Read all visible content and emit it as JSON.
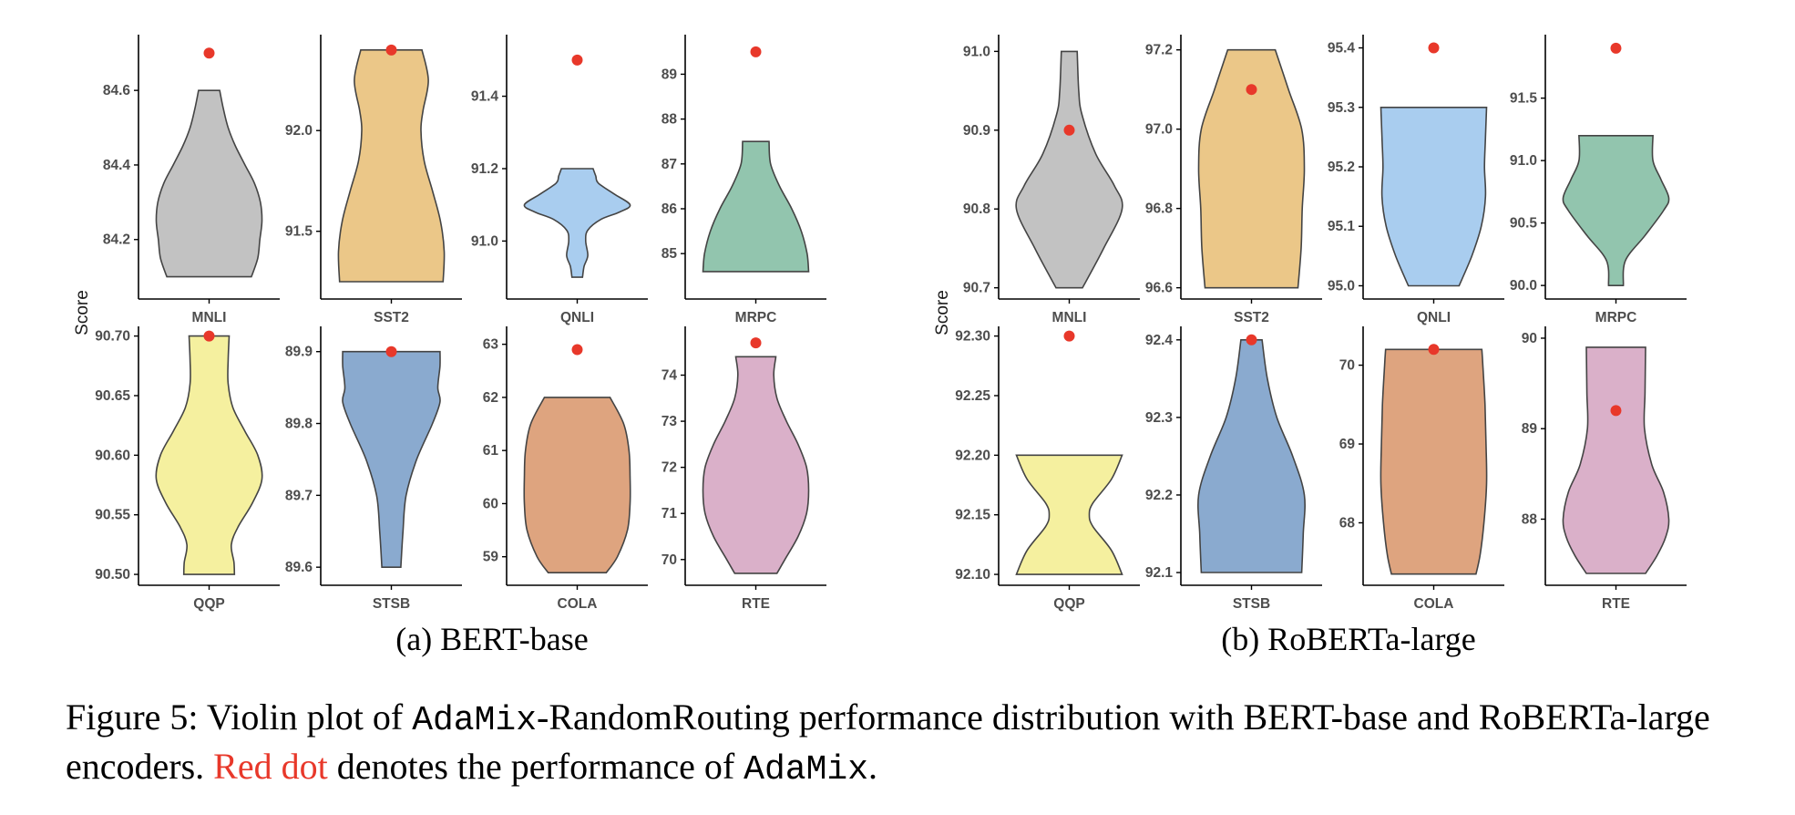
{
  "colors": {
    "MNLI": "#c2c2c2",
    "SST2": "#ebc788",
    "QNLI": "#a9cdef",
    "MRPC": "#92c5ae",
    "QQP": "#f5f09f",
    "STSB": "#8aaacf",
    "COLA": "#dea47f",
    "RTE": "#dab0c9",
    "dot": "#e8382a",
    "outline": "#444444",
    "axis": "#000000"
  },
  "chart_data": [
    {
      "group": "(a) BERT-base",
      "type": "violin",
      "ylabel": "Score",
      "panels": [
        {
          "task": "MNLI",
          "ylim": [
            84.06,
            84.73
          ],
          "ticks": [
            84.2,
            84.4,
            84.6
          ],
          "tick_labels": [
            "84.2",
            "84.4",
            "84.6"
          ],
          "violin": [
            [
              84.1,
              0.8
            ],
            [
              84.15,
              0.92
            ],
            [
              84.2,
              0.96
            ],
            [
              84.25,
              1.0
            ],
            [
              84.3,
              0.97
            ],
            [
              84.35,
              0.86
            ],
            [
              84.4,
              0.68
            ],
            [
              84.45,
              0.5
            ],
            [
              84.5,
              0.36
            ],
            [
              84.55,
              0.27
            ],
            [
              84.6,
              0.2
            ]
          ],
          "adamix": 84.7
        },
        {
          "task": "SST2",
          "ylim": [
            91.2,
            92.44
          ],
          "ticks": [
            91.5,
            92.0
          ],
          "tick_labels": [
            "91.5",
            "92.0"
          ],
          "violin": [
            [
              91.25,
              0.98
            ],
            [
              91.4,
              1.0
            ],
            [
              91.55,
              0.93
            ],
            [
              91.7,
              0.78
            ],
            [
              91.85,
              0.62
            ],
            [
              92.0,
              0.56
            ],
            [
              92.1,
              0.6
            ],
            [
              92.25,
              0.7
            ],
            [
              92.4,
              0.58
            ]
          ],
          "adamix": 92.4
        },
        {
          "task": "QNLI",
          "ylim": [
            90.86,
            91.55
          ],
          "ticks": [
            91.0,
            91.2,
            91.4
          ],
          "tick_labels": [
            "91.0",
            "91.2",
            "91.4"
          ],
          "violin": [
            [
              90.9,
              0.1
            ],
            [
              90.93,
              0.13
            ],
            [
              90.96,
              0.2
            ],
            [
              91.0,
              0.16
            ],
            [
              91.03,
              0.2
            ],
            [
              91.06,
              0.45
            ],
            [
              91.08,
              0.8
            ],
            [
              91.1,
              1.0
            ],
            [
              91.13,
              0.7
            ],
            [
              91.16,
              0.4
            ],
            [
              91.18,
              0.35
            ],
            [
              91.2,
              0.3
            ]
          ],
          "adamix": 91.5
        },
        {
          "task": "MRPC",
          "ylim": [
            84.15,
            89.72
          ],
          "ticks": [
            85,
            86,
            87,
            88,
            89
          ],
          "tick_labels": [
            "85",
            "86",
            "87",
            "88",
            "89"
          ],
          "violin": [
            [
              84.6,
              1.0
            ],
            [
              85.0,
              0.97
            ],
            [
              85.5,
              0.86
            ],
            [
              86.0,
              0.68
            ],
            [
              86.5,
              0.45
            ],
            [
              87.0,
              0.28
            ],
            [
              87.5,
              0.25
            ]
          ],
          "adamix": 89.5
        }
      ]
    },
    {
      "group": "(a) BERT-base-row2",
      "type": "violin",
      "ylabel": "",
      "panels": [
        {
          "task": "QQP",
          "ylim": [
            90.497,
            90.702
          ],
          "ticks": [
            90.5,
            90.55,
            90.6,
            90.65,
            90.7
          ],
          "tick_labels": [
            "90.50",
            "90.55",
            "90.60",
            "90.65",
            "90.70"
          ],
          "violin": [
            [
              90.5,
              0.48
            ],
            [
              90.51,
              0.47
            ],
            [
              90.525,
              0.42
            ],
            [
              90.54,
              0.55
            ],
            [
              90.56,
              0.82
            ],
            [
              90.58,
              1.0
            ],
            [
              90.6,
              0.92
            ],
            [
              90.62,
              0.68
            ],
            [
              90.64,
              0.45
            ],
            [
              90.66,
              0.36
            ],
            [
              90.68,
              0.36
            ],
            [
              90.7,
              0.38
            ]
          ],
          "adamix": 90.7
        },
        {
          "task": "STSB",
          "ylim": [
            89.585,
            89.925
          ],
          "ticks": [
            89.6,
            89.7,
            89.8,
            89.9
          ],
          "tick_labels": [
            "89.6",
            "89.7",
            "89.8",
            "89.9"
          ],
          "violin": [
            [
              89.6,
              0.18
            ],
            [
              89.65,
              0.22
            ],
            [
              89.7,
              0.28
            ],
            [
              89.75,
              0.48
            ],
            [
              89.8,
              0.78
            ],
            [
              89.83,
              0.92
            ],
            [
              89.85,
              0.88
            ],
            [
              89.88,
              0.92
            ],
            [
              89.9,
              0.92
            ]
          ],
          "adamix": 89.9
        },
        {
          "task": "COLA",
          "ylim": [
            58.6,
            63.2
          ],
          "ticks": [
            59,
            60,
            61,
            62,
            63
          ],
          "tick_labels": [
            "59",
            "60",
            "61",
            "62",
            "63"
          ],
          "violin": [
            [
              58.7,
              0.55
            ],
            [
              59.0,
              0.76
            ],
            [
              59.5,
              0.95
            ],
            [
              60.0,
              1.0
            ],
            [
              60.5,
              1.0
            ],
            [
              61.0,
              0.98
            ],
            [
              61.5,
              0.88
            ],
            [
              62.0,
              0.62
            ]
          ],
          "adamix": 62.9
        },
        {
          "task": "RTE",
          "ylim": [
            69.6,
            74.9
          ],
          "ticks": [
            70,
            71,
            72,
            73,
            74
          ],
          "tick_labels": [
            "70",
            "71",
            "72",
            "73",
            "74"
          ],
          "violin": [
            [
              69.7,
              0.4
            ],
            [
              70.0,
              0.55
            ],
            [
              70.5,
              0.8
            ],
            [
              71.0,
              0.96
            ],
            [
              71.5,
              1.0
            ],
            [
              72.0,
              0.96
            ],
            [
              72.5,
              0.8
            ],
            [
              73.0,
              0.58
            ],
            [
              73.5,
              0.4
            ],
            [
              74.0,
              0.34
            ],
            [
              74.4,
              0.38
            ]
          ],
          "adamix": 74.7
        }
      ]
    },
    {
      "group": "(b) RoBERTa-large",
      "type": "violin",
      "ylabel": "Score",
      "panels": [
        {
          "task": "MNLI",
          "ylim": [
            90.695,
            91.012
          ],
          "ticks": [
            90.7,
            90.8,
            90.9,
            91.0
          ],
          "tick_labels": [
            "90.7",
            "90.8",
            "90.9",
            "91.0"
          ],
          "violin": [
            [
              90.7,
              0.25
            ],
            [
              90.75,
              0.65
            ],
            [
              90.8,
              1.0
            ],
            [
              90.83,
              0.85
            ],
            [
              90.87,
              0.5
            ],
            [
              90.92,
              0.24
            ],
            [
              90.95,
              0.18
            ],
            [
              91.0,
              0.15
            ]
          ],
          "adamix": 90.9
        },
        {
          "task": "SST2",
          "ylim": [
            96.59,
            97.22
          ],
          "ticks": [
            96.6,
            96.8,
            97.0,
            97.2
          ],
          "tick_labels": [
            "96.6",
            "96.8",
            "97.0",
            "97.2"
          ],
          "violin": [
            [
              96.6,
              0.88
            ],
            [
              96.7,
              0.94
            ],
            [
              96.8,
              0.96
            ],
            [
              96.9,
              1.0
            ],
            [
              97.0,
              0.95
            ],
            [
              97.1,
              0.7
            ],
            [
              97.2,
              0.45
            ]
          ],
          "adamix": 97.1
        },
        {
          "task": "QNLI",
          "ylim": [
            94.99,
            95.41
          ],
          "ticks": [
            95.0,
            95.1,
            95.2,
            95.3,
            95.4
          ],
          "tick_labels": [
            "95.0",
            "95.1",
            "95.2",
            "95.3",
            "95.4"
          ],
          "violin": [
            [
              95.0,
              0.48
            ],
            [
              95.05,
              0.72
            ],
            [
              95.1,
              0.9
            ],
            [
              95.15,
              0.98
            ],
            [
              95.2,
              0.96
            ],
            [
              95.25,
              0.98
            ],
            [
              95.3,
              1.0
            ]
          ],
          "adamix": 95.4
        },
        {
          "task": "MRPC",
          "ylim": [
            89.95,
            91.95
          ],
          "ticks": [
            90.0,
            90.5,
            91.0,
            91.5
          ],
          "tick_labels": [
            "90.0",
            "90.5",
            "91.0",
            "91.5"
          ],
          "violin": [
            [
              90.0,
              0.14
            ],
            [
              90.2,
              0.18
            ],
            [
              90.4,
              0.55
            ],
            [
              90.6,
              0.9
            ],
            [
              90.7,
              1.0
            ],
            [
              90.85,
              0.85
            ],
            [
              91.0,
              0.7
            ],
            [
              91.2,
              0.7
            ]
          ],
          "adamix": 91.9
        }
      ]
    },
    {
      "group": "(b) RoBERTa-large-row2",
      "type": "violin",
      "ylabel": "",
      "panels": [
        {
          "task": "QQP",
          "ylim": [
            92.097,
            92.302
          ],
          "ticks": [
            92.1,
            92.15,
            92.2,
            92.25,
            92.3
          ],
          "tick_labels": [
            "92.10",
            "92.15",
            "92.20",
            "92.25",
            "92.30"
          ],
          "violin": [
            [
              92.1,
              1.0
            ],
            [
              92.12,
              0.8
            ],
            [
              92.14,
              0.45
            ],
            [
              92.15,
              0.38
            ],
            [
              92.16,
              0.45
            ],
            [
              92.18,
              0.8
            ],
            [
              92.2,
              1.0
            ]
          ],
          "adamix": 92.3
        },
        {
          "task": "STSB",
          "ylim": [
            92.093,
            92.408
          ],
          "ticks": [
            92.1,
            92.2,
            92.3,
            92.4
          ],
          "tick_labels": [
            "92.1",
            "92.2",
            "92.3",
            "92.4"
          ],
          "violin": [
            [
              92.1,
              0.95
            ],
            [
              92.15,
              0.98
            ],
            [
              92.2,
              1.0
            ],
            [
              92.25,
              0.78
            ],
            [
              92.3,
              0.48
            ],
            [
              92.35,
              0.3
            ],
            [
              92.4,
              0.2
            ]
          ],
          "adamix": 92.4
        },
        {
          "task": "COLA",
          "ylim": [
            67.3,
            70.4
          ],
          "ticks": [
            68,
            69,
            70
          ],
          "tick_labels": [
            "68",
            "69",
            "70"
          ],
          "violin": [
            [
              67.35,
              0.8
            ],
            [
              67.6,
              0.88
            ],
            [
              68.0,
              0.95
            ],
            [
              68.5,
              1.0
            ],
            [
              69.0,
              0.99
            ],
            [
              69.5,
              0.97
            ],
            [
              70.0,
              0.93
            ],
            [
              70.2,
              0.91
            ]
          ],
          "adamix": 70.2
        },
        {
          "task": "RTE",
          "ylim": [
            87.35,
            90.05
          ],
          "ticks": [
            88,
            89,
            90
          ],
          "tick_labels": [
            "88",
            "89",
            "90"
          ],
          "violin": [
            [
              87.4,
              0.56
            ],
            [
              87.6,
              0.78
            ],
            [
              87.8,
              0.94
            ],
            [
              88.0,
              1.0
            ],
            [
              88.3,
              0.9
            ],
            [
              88.6,
              0.68
            ],
            [
              89.0,
              0.54
            ],
            [
              89.4,
              0.55
            ],
            [
              89.9,
              0.56
            ]
          ],
          "adamix": 89.2
        }
      ]
    }
  ],
  "subcaptions": [
    "(a) BERT-base",
    "(b) RoBERTa-large"
  ],
  "caption": {
    "prefix": "Figure 5: Violin plot of ",
    "method": "AdaMix",
    "mid1": "-RandomRouting performance distribution with BERT-base and RoBERTa-large encoders. ",
    "red_text": "Red dot",
    "mid2": " denotes the performance of ",
    "method2": "AdaMix",
    "suffix": "."
  }
}
